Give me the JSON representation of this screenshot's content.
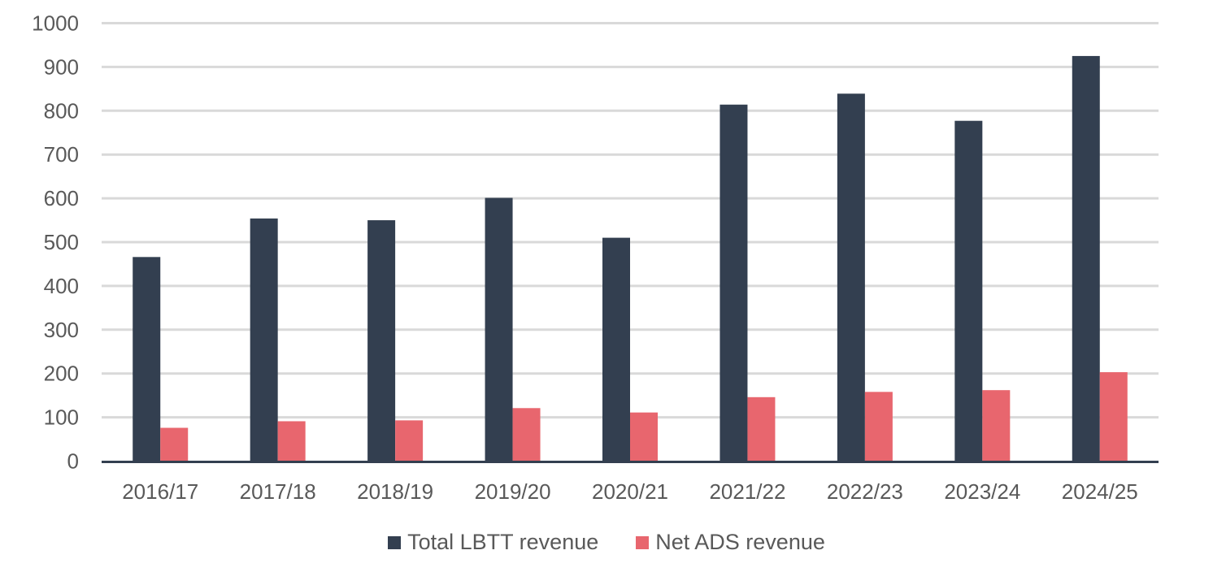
{
  "chart_data": {
    "type": "bar",
    "categories": [
      "2016/17",
      "2017/18",
      "2018/19",
      "2019/20",
      "2020/21",
      "2021/22",
      "2022/23",
      "2023/24",
      "2024/25"
    ],
    "series": [
      {
        "name": "Total LBTT revenue",
        "color": "#333F50",
        "values": [
          466,
          554,
          550,
          601,
          510,
          814,
          839,
          777,
          925
        ]
      },
      {
        "name": "Net ADS revenue",
        "color": "#E8666E",
        "values": [
          76,
          91,
          93,
          121,
          111,
          146,
          158,
          162,
          203
        ]
      }
    ],
    "title": "",
    "xlabel": "",
    "ylabel": "",
    "ylim": [
      0,
      1000
    ],
    "yticks": [
      0,
      100,
      200,
      300,
      400,
      500,
      600,
      700,
      800,
      900,
      1000
    ],
    "grid": true,
    "legend": "bottom"
  }
}
